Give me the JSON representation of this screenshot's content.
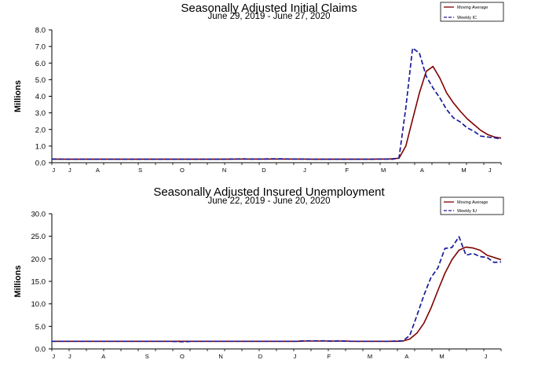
{
  "chart_data": [
    {
      "type": "line",
      "title": "Seasonally Adjusted Initial Claims",
      "subtitle": "June 29, 2019 - June 27, 2020",
      "ylabel": "Millions",
      "xlabel": "",
      "ylim": [
        0,
        8
      ],
      "yticks": [
        "0.0",
        "1.0",
        "2.0",
        "3.0",
        "4.0",
        "5.0",
        "6.0",
        "7.0",
        "8.0"
      ],
      "month_labels": [
        "J",
        "J",
        "A",
        "S",
        "O",
        "N",
        "D",
        "J",
        "F",
        "M",
        "A",
        "M",
        "J"
      ],
      "legend_position": "top-right",
      "grid": false,
      "series": [
        {
          "name": "Moving Average",
          "color": "#800000",
          "style": "solid",
          "values": [
            0.21,
            0.21,
            0.21,
            0.21,
            0.21,
            0.21,
            0.21,
            0.21,
            0.21,
            0.21,
            0.21,
            0.21,
            0.21,
            0.21,
            0.21,
            0.21,
            0.21,
            0.21,
            0.21,
            0.21,
            0.21,
            0.21,
            0.21,
            0.21,
            0.21,
            0.21,
            0.21,
            0.22,
            0.22,
            0.22,
            0.22,
            0.22,
            0.22,
            0.22,
            0.22,
            0.22,
            0.22,
            0.22,
            0.21,
            0.21,
            0.21,
            0.21,
            0.21,
            0.21,
            0.21,
            0.21,
            0.21,
            0.21,
            0.22,
            0.22,
            0.23,
            0.27,
            1.0,
            2.6,
            4.2,
            5.5,
            5.8,
            5.1,
            4.2,
            3.6,
            3.1,
            2.65,
            2.3,
            1.95,
            1.7,
            1.55,
            1.48
          ]
        },
        {
          "name": "Weekly IC",
          "color": "#1a1a9a",
          "style": "dashed",
          "values": [
            0.22,
            0.22,
            0.21,
            0.21,
            0.21,
            0.21,
            0.21,
            0.21,
            0.21,
            0.21,
            0.21,
            0.21,
            0.21,
            0.21,
            0.21,
            0.21,
            0.21,
            0.21,
            0.21,
            0.21,
            0.21,
            0.21,
            0.21,
            0.21,
            0.21,
            0.21,
            0.22,
            0.22,
            0.23,
            0.22,
            0.22,
            0.22,
            0.23,
            0.23,
            0.23,
            0.22,
            0.22,
            0.22,
            0.21,
            0.21,
            0.21,
            0.21,
            0.21,
            0.21,
            0.21,
            0.21,
            0.21,
            0.21,
            0.22,
            0.22,
            0.21,
            0.28,
            3.3,
            6.9,
            6.6,
            5.2,
            4.5,
            3.9,
            3.2,
            2.7,
            2.45,
            2.1,
            1.9,
            1.6,
            1.55,
            1.5,
            1.43
          ]
        }
      ]
    },
    {
      "type": "line",
      "title": "Seasonally Adjusted Insured Unemployment",
      "subtitle": "June 22, 2019 - June 20, 2020",
      "ylabel": "Millions",
      "xlabel": "",
      "ylim": [
        0,
        30
      ],
      "yticks": [
        "0.0",
        "5.0",
        "10.0",
        "15.0",
        "20.0",
        "25.0",
        "30.0"
      ],
      "month_labels": [
        "J",
        "J",
        "A",
        "S",
        "O",
        "N",
        "D",
        "J",
        "F",
        "M",
        "A",
        "M",
        "J"
      ],
      "legend_position": "top-right",
      "grid": false,
      "series": [
        {
          "name": "Moving Average",
          "color": "#800000",
          "style": "solid",
          "values": [
            1.7,
            1.7,
            1.7,
            1.7,
            1.7,
            1.7,
            1.7,
            1.7,
            1.7,
            1.7,
            1.7,
            1.7,
            1.7,
            1.7,
            1.7,
            1.7,
            1.7,
            1.7,
            1.7,
            1.7,
            1.7,
            1.7,
            1.7,
            1.7,
            1.7,
            1.7,
            1.7,
            1.7,
            1.7,
            1.7,
            1.7,
            1.7,
            1.7,
            1.7,
            1.7,
            1.7,
            1.75,
            1.75,
            1.75,
            1.75,
            1.75,
            1.75,
            1.75,
            1.7,
            1.7,
            1.7,
            1.7,
            1.7,
            1.7,
            1.7,
            1.75,
            2.2,
            3.5,
            5.7,
            9.0,
            13.0,
            16.8,
            19.8,
            21.9,
            22.6,
            22.4,
            21.9,
            20.8,
            20.3,
            19.8
          ]
        },
        {
          "name": "Weekly IU",
          "color": "#1a1a9a",
          "style": "dashed",
          "values": [
            1.7,
            1.7,
            1.7,
            1.7,
            1.7,
            1.7,
            1.7,
            1.7,
            1.7,
            1.7,
            1.7,
            1.7,
            1.7,
            1.7,
            1.7,
            1.7,
            1.7,
            1.7,
            1.6,
            1.6,
            1.7,
            1.7,
            1.7,
            1.7,
            1.7,
            1.7,
            1.7,
            1.7,
            1.7,
            1.7,
            1.7,
            1.7,
            1.7,
            1.7,
            1.7,
            1.7,
            1.8,
            1.8,
            1.8,
            1.8,
            1.7,
            1.8,
            1.7,
            1.7,
            1.7,
            1.7,
            1.7,
            1.7,
            1.7,
            1.75,
            1.8,
            3.0,
            7.4,
            11.9,
            15.8,
            18.0,
            22.3,
            22.5,
            24.9,
            20.8,
            21.2,
            20.5,
            20.3,
            19.2,
            19.3
          ]
        }
      ]
    }
  ]
}
